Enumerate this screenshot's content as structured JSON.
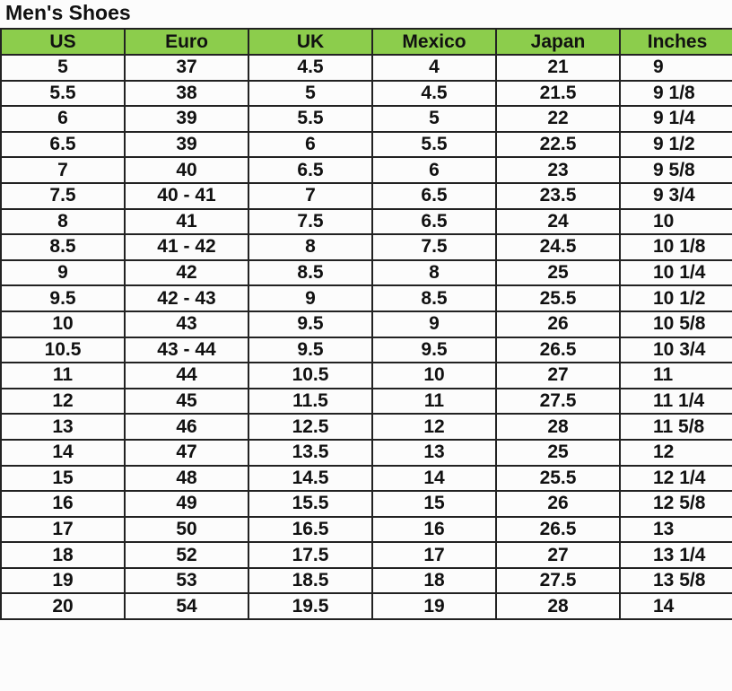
{
  "title": "Men's Shoes",
  "header_color": "#8ccd4c",
  "columns": [
    "US",
    "Euro",
    "UK",
    "Mexico",
    "Japan",
    "Inches"
  ],
  "rows": [
    [
      "5",
      "37",
      "4.5",
      "4",
      "21",
      "9"
    ],
    [
      "5.5",
      "38",
      "5",
      "4.5",
      "21.5",
      "9 1/8"
    ],
    [
      "6",
      "39",
      "5.5",
      "5",
      "22",
      "9 1/4"
    ],
    [
      "6.5",
      "39",
      "6",
      "5.5",
      "22.5",
      "9 1/2"
    ],
    [
      "7",
      "40",
      "6.5",
      "6",
      "23",
      "9 5/8"
    ],
    [
      "7.5",
      "40 - 41",
      "7",
      "6.5",
      "23.5",
      "9 3/4"
    ],
    [
      "8",
      "41",
      "7.5",
      "6.5",
      "24",
      "10"
    ],
    [
      "8.5",
      "41 - 42",
      "8",
      "7.5",
      "24.5",
      "10 1/8"
    ],
    [
      "9",
      "42",
      "8.5",
      "8",
      "25",
      "10 1/4"
    ],
    [
      "9.5",
      "42 - 43",
      "9",
      "8.5",
      "25.5",
      "10 1/2"
    ],
    [
      "10",
      "43",
      "9.5",
      "9",
      "26",
      "10 5/8"
    ],
    [
      "10.5",
      "43 - 44",
      "9.5",
      "9.5",
      "26.5",
      "10 3/4"
    ],
    [
      "11",
      "44",
      "10.5",
      "10",
      "27",
      "11"
    ],
    [
      "12",
      "45",
      "11.5",
      "11",
      "27.5",
      "11 1/4"
    ],
    [
      "13",
      "46",
      "12.5",
      "12",
      "28",
      "11 5/8"
    ],
    [
      "14",
      "47",
      "13.5",
      "13",
      "25",
      "12"
    ],
    [
      "15",
      "48",
      "14.5",
      "14",
      "25.5",
      "12 1/4"
    ],
    [
      "16",
      "49",
      "15.5",
      "15",
      "26",
      "12 5/8"
    ],
    [
      "17",
      "50",
      "16.5",
      "16",
      "26.5",
      "13"
    ],
    [
      "18",
      "52",
      "17.5",
      "17",
      "27",
      "13 1/4"
    ],
    [
      "19",
      "53",
      "18.5",
      "18",
      "27.5",
      "13 5/8"
    ],
    [
      "20",
      "54",
      "19.5",
      "19",
      "28",
      "14"
    ]
  ]
}
